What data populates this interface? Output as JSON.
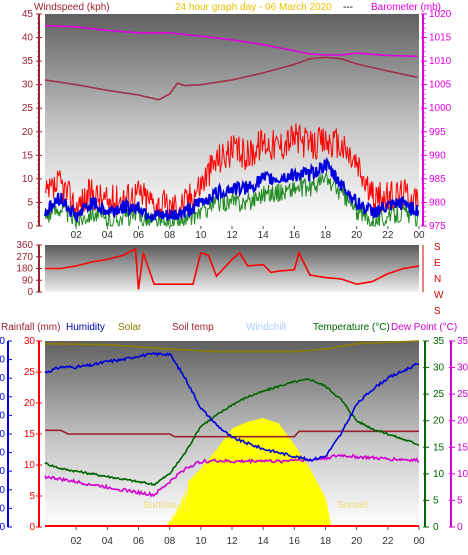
{
  "colors": {
    "wind_axis": "#9b2030",
    "baro": "#e000e0",
    "humidity": "#0000dd",
    "solar": "#8a7d00",
    "soil": "#9b2030",
    "windchill": "#aaccff",
    "temp": "#006400",
    "dew": "#d000d0",
    "rain": "#ff0000",
    "gust": "#ff0000",
    "wind": "#228b22",
    "avg": "#0000dd",
    "sun": "#ffff00",
    "title": "#e8c000"
  },
  "header": {
    "windspeed_label": "Windspeed (kph)",
    "title": "24 hour graph day - 06 March 2020",
    "separator": "---",
    "barometer_label": "Barometer (mb)"
  },
  "direction_labels": [
    "S",
    "E",
    "N",
    "W",
    "S"
  ],
  "bottom_header": {
    "rainfall": "Rainfall (mm)",
    "humidity": "Humidity",
    "solar": "Solar",
    "soil": "Soil temp",
    "windchill": "Windchill",
    "temperature": "Temperature (°C)",
    "dewpoint": "Dew Point (°C)"
  },
  "sunrise_label": "Sunrise",
  "sunset_label": "Sunset",
  "sun_labels": [
    "Sunrise",
    "Sunset"
  ],
  "chart_data": [
    {
      "type": "line",
      "title": "24 hour graph day - 06 March 2020",
      "x_ticks": [
        "02",
        "04",
        "06",
        "08",
        "10",
        "12",
        "14",
        "16",
        "18",
        "20",
        "22",
        "00"
      ],
      "y_left": {
        "label": "Windspeed (kph)",
        "ticks": [
          0,
          5,
          10,
          15,
          20,
          25,
          30,
          35,
          40,
          45
        ],
        "range": [
          0,
          45
        ]
      },
      "y_right": {
        "label": "Barometer (mb)",
        "ticks": [
          975,
          980,
          985,
          990,
          995,
          1000,
          1005,
          1010,
          1015,
          1020
        ],
        "range": [
          975,
          1020
        ]
      },
      "series": [
        {
          "name": "Barometer (mb)",
          "color": "#e000e0",
          "hours": [
            0,
            2,
            4,
            6,
            8,
            10,
            12,
            14,
            16,
            17,
            18,
            19,
            20,
            22,
            24
          ],
          "values": [
            1017.5,
            1017.3,
            1016.5,
            1016,
            1016,
            1015.3,
            1014.5,
            1013.5,
            1012.2,
            1011.5,
            1011.3,
            1011.3,
            1011.7,
            1011.2,
            1011.0
          ]
        },
        {
          "name": "",
          "color": "#a0304a",
          "hours": [
            0,
            2,
            4,
            6,
            7.3,
            8,
            8.5,
            9,
            10,
            12,
            14,
            16,
            17,
            18,
            19,
            20,
            22,
            24
          ],
          "values": [
            1006,
            1005,
            1003.8,
            1002.8,
            1001.8,
            1003,
            1005.3,
            1004.8,
            1005,
            1006,
            1007.5,
            1009.3,
            1010.5,
            1010.8,
            1010.5,
            1009.4,
            1007.9,
            1006.5
          ]
        },
        {
          "name": "",
          "color": "#ff0000",
          "hours": [
            0,
            1,
            2,
            3,
            4,
            5,
            6,
            7,
            8,
            9,
            10,
            11,
            12,
            13,
            14,
            15,
            16,
            17,
            18,
            19,
            20,
            21,
            22,
            23,
            24
          ],
          "values": [
            6,
            9,
            4,
            7,
            5,
            6,
            7,
            5,
            4,
            5,
            9,
            14,
            16,
            15,
            18,
            17,
            19,
            17,
            18,
            17,
            13,
            6,
            6,
            7,
            6
          ]
        },
        {
          "name": "",
          "color": "#0000dd",
          "hours": [
            0,
            1,
            2,
            3,
            4,
            5,
            6,
            7,
            8,
            9,
            10,
            11,
            12,
            13,
            14,
            15,
            16,
            17,
            18,
            19,
            20,
            21,
            22,
            23,
            24
          ],
          "values": [
            3,
            6,
            2,
            5,
            3,
            4,
            4,
            2,
            2,
            3,
            5,
            7,
            8,
            8,
            10,
            10,
            11,
            11,
            13,
            9,
            5,
            3,
            4,
            5,
            3
          ]
        },
        {
          "name": "",
          "color": "#228b22",
          "hours": [
            0,
            1,
            2,
            3,
            4,
            5,
            6,
            7,
            8,
            9,
            10,
            11,
            12,
            13,
            14,
            15,
            16,
            17,
            18,
            19,
            20,
            21,
            22,
            23,
            24
          ],
          "values": [
            2,
            4,
            1,
            3,
            1,
            2,
            2,
            1,
            0,
            1,
            3,
            5,
            5,
            5,
            7,
            7,
            8,
            8,
            10,
            7,
            3,
            1,
            2,
            3,
            1
          ]
        }
      ]
    },
    {
      "type": "line",
      "title": "",
      "y_left": {
        "ticks": [
          0,
          90,
          180,
          270,
          360
        ],
        "range": [
          0,
          360
        ]
      },
      "y_right_labels": [
        "S",
        "E",
        "N",
        "W",
        "S"
      ],
      "series": [
        {
          "name": "",
          "color": "#ff0000",
          "hours": [
            0,
            1,
            2,
            3,
            4,
            5,
            5.8,
            6,
            6.3,
            7,
            8,
            8.7,
            9,
            9.5,
            10,
            10.5,
            11,
            12,
            12.5,
            13,
            14,
            14.5,
            15,
            16,
            16.3,
            17,
            18,
            19,
            20,
            21,
            22,
            23,
            24
          ],
          "values": [
            180,
            180,
            200,
            230,
            250,
            280,
            330,
            20,
            300,
            60,
            60,
            60,
            60,
            60,
            300,
            280,
            120,
            250,
            300,
            200,
            210,
            150,
            160,
            170,
            300,
            130,
            110,
            100,
            60,
            80,
            140,
            180,
            200
          ]
        }
      ]
    },
    {
      "type": "line",
      "title": "",
      "y_left": {
        "label": "Rainfall (mm)",
        "ticks": [
          0,
          5,
          10,
          15,
          20,
          25,
          30
        ],
        "range": [
          0,
          30
        ]
      },
      "y_humidity": {
        "label": "Humidity",
        "ticks": [
          0,
          10,
          20,
          30,
          40,
          50,
          60,
          70,
          80,
          90,
          100
        ],
        "range": [
          0,
          100
        ]
      },
      "y_right": {
        "label": "Temperature (°C)",
        "ticks": [
          0,
          5,
          10,
          15,
          20,
          25,
          30,
          35
        ],
        "range": [
          0,
          35
        ]
      },
      "x_ticks": [
        "02",
        "04",
        "06",
        "08",
        "10",
        "12",
        "14",
        "16",
        "18",
        "20",
        "22",
        "00"
      ],
      "series": [
        {
          "name": "Humidity",
          "color": "#0000dd",
          "hours": [
            0,
            1,
            2,
            3,
            4,
            5,
            6,
            7,
            8,
            9,
            10,
            11,
            12,
            13,
            14,
            15,
            16,
            17,
            18,
            19,
            20,
            21,
            22,
            23,
            24
          ],
          "values": [
            83,
            86,
            86,
            87,
            89,
            90,
            92,
            93,
            93,
            80,
            64,
            55,
            48,
            45,
            42,
            40,
            38,
            36,
            38,
            50,
            66,
            74,
            80,
            84,
            88
          ]
        },
        {
          "name": "Temperature (°C)",
          "color": "#006400",
          "hours": [
            0,
            1,
            2,
            3,
            4,
            5,
            6,
            7,
            8,
            9,
            10,
            11,
            12,
            13,
            14,
            15,
            16,
            17,
            18,
            19,
            20,
            21,
            22,
            23,
            24
          ],
          "values": [
            12,
            11,
            10.5,
            10,
            9.5,
            9,
            8.5,
            8,
            10,
            14,
            19,
            21,
            23,
            24.5,
            25.5,
            26.5,
            27.3,
            27.8,
            26.5,
            24,
            20,
            18.5,
            17.5,
            16.5,
            15.5
          ]
        },
        {
          "name": "Dew Point (°C)",
          "color": "#d000d0",
          "hours": [
            0,
            1,
            2,
            3,
            4,
            5,
            6,
            7,
            8,
            9,
            10,
            11,
            12,
            13,
            14,
            15,
            16,
            17,
            18,
            19,
            20,
            21,
            22,
            23,
            24
          ],
          "values": [
            9.5,
            9,
            8.5,
            8,
            7.5,
            7,
            6.5,
            6,
            8.5,
            11,
            12.3,
            12.5,
            12.3,
            12.4,
            12.5,
            12.3,
            12.7,
            12.6,
            13,
            13.5,
            13.2,
            13,
            12.8,
            12.7,
            12.5
          ]
        },
        {
          "name": "Solar",
          "color": "#8a7d00",
          "hours": [
            0,
            4,
            8,
            11,
            14,
            16,
            18,
            20,
            24
          ],
          "values": [
            34.5,
            34.3,
            33.5,
            33.0,
            33.0,
            33.0,
            33.5,
            34.5,
            35
          ]
        },
        {
          "name": "Soil temp",
          "color": "#9b2030",
          "hours": [
            0,
            1,
            1.5,
            8,
            8.3,
            16,
            16.3,
            24
          ],
          "values": [
            18.2,
            18.2,
            17.5,
            17.5,
            17.0,
            17.0,
            18.0,
            18.0
          ]
        },
        {
          "name": "",
          "color": "#ffff00",
          "hours": [
            7.7,
            8.3,
            9,
            10,
            11,
            12,
            13,
            14,
            15,
            16,
            17,
            18,
            18.4
          ],
          "values": [
            0,
            3,
            8,
            11,
            14.5,
            18.5,
            19.8,
            20.5,
            19.5,
            15.5,
            11,
            5.5,
            0
          ]
        }
      ]
    }
  ]
}
